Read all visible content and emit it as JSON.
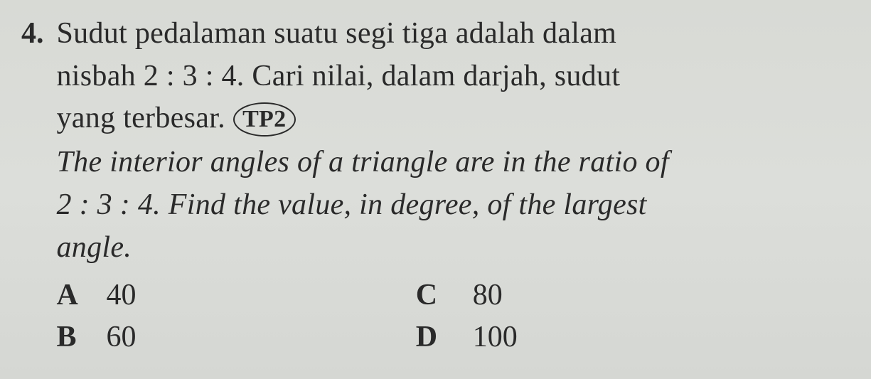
{
  "question": {
    "number": "4.",
    "ms_line1": "Sudut pedalaman suatu segi tiga adalah dalam",
    "ms_line2": "nisbah 2 : 3 : 4. Cari nilai, dalam darjah, sudut",
    "ms_line3_pre": "yang terbesar. ",
    "badge": "TP2",
    "en_line1": "The interior angles of a triangle are in the ratio of",
    "en_line2": "2 : 3 : 4. Find the value, in degree, of the largest",
    "en_line3": "angle."
  },
  "options": {
    "A": {
      "letter": "A",
      "value": "40"
    },
    "B": {
      "letter": "B",
      "value": "60"
    },
    "C": {
      "letter": "C",
      "value": "80"
    },
    "D": {
      "letter": "D",
      "value": "100"
    }
  },
  "colors": {
    "text": "#2a2a2a",
    "background": "#d8dad5"
  }
}
